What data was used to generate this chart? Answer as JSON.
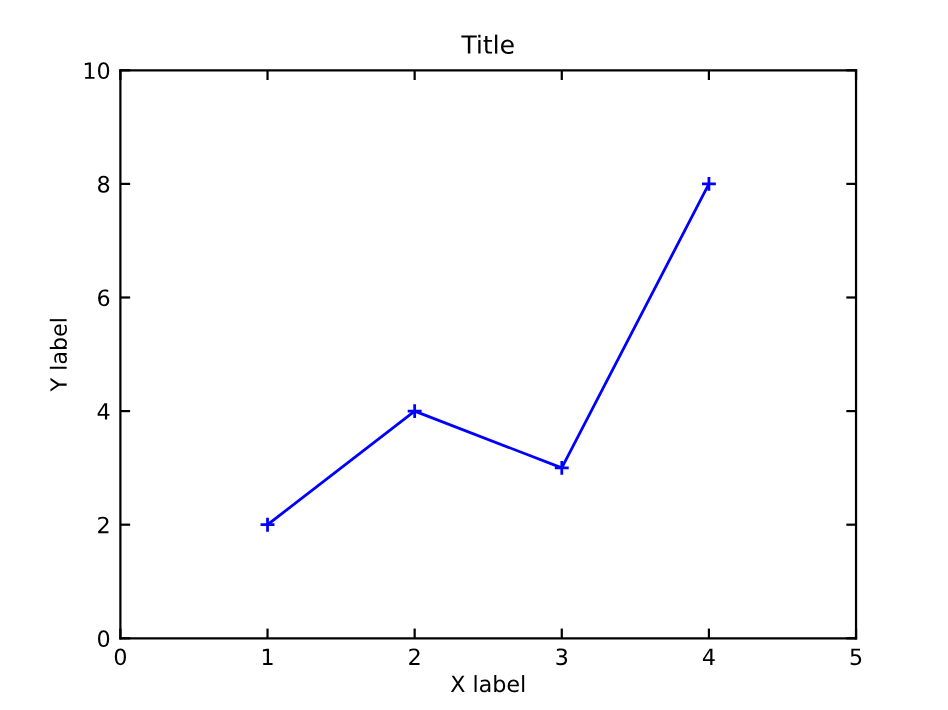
{
  "chart_data": {
    "type": "line",
    "title": "Title",
    "xlabel": "X label",
    "ylabel": "Y label",
    "x": [
      1,
      2,
      3,
      4
    ],
    "series": [
      {
        "color": "#0000ff",
        "values": [
          2,
          4,
          3,
          8
        ]
      }
    ],
    "xlim": [
      0,
      5
    ],
    "ylim": [
      0,
      10
    ],
    "xticks": [
      0,
      1,
      2,
      3,
      4,
      5
    ],
    "yticks": [
      0,
      2,
      4,
      6,
      8,
      10
    ],
    "grid": false,
    "marker": "cross",
    "line_style": "solid"
  }
}
